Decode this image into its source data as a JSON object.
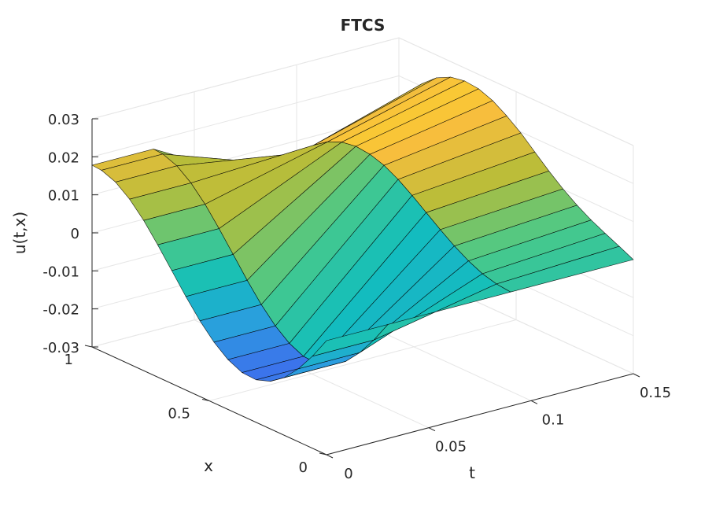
{
  "chart_data": {
    "type": "surface",
    "title": "FTCS",
    "xlabel": "t",
    "ylabel": "x",
    "zlabel": "u(t,x)",
    "t_ticks": [
      "0",
      "0.05",
      "0.1",
      "0.15"
    ],
    "x_ticks": [
      "0",
      "0.5",
      "1"
    ],
    "z_ticks": [
      "-0.03",
      "-0.02",
      "-0.01",
      "0",
      "0.01",
      "0.02",
      "0.03"
    ],
    "tlim": [
      0,
      0.15
    ],
    "xlim": [
      0,
      1
    ],
    "zlim": [
      -0.03,
      0.03
    ],
    "grid": true,
    "colormap": [
      "#3e26a8",
      "#4361f0",
      "#2b9ddf",
      "#12bebd",
      "#49c989",
      "#b8bd39",
      "#f9be3d",
      "#f9fb0e"
    ],
    "t": [
      0,
      0.03,
      0.09,
      0.15
    ],
    "x": [
      0,
      0.06,
      0.12,
      0.18,
      0.24,
      0.3,
      0.36,
      0.42,
      0.48,
      0.54,
      0.6,
      0.66,
      0.72,
      0.78,
      0.84,
      0.9,
      0.96,
      1
    ],
    "u": [
      [
        0,
        -0.0058,
        -0.0108,
        -0.0148,
        -0.0175,
        -0.0188,
        -0.0186,
        -0.0169,
        -0.014,
        -0.0101,
        -0.0054,
        -0.0003,
        0.0048,
        0.0095,
        0.0134,
        0.0162,
        0.0176,
        0.0178
      ],
      [
        0,
        -0.0058,
        -0.0108,
        -0.0148,
        -0.0175,
        -0.0188,
        -0.0186,
        -0.0169,
        -0.014,
        -0.0101,
        -0.0054,
        -0.0003,
        0.0048,
        0.0095,
        0.0134,
        0.0162,
        0.0176,
        0.0178
      ],
      [
        0,
        0.0004,
        0.0014,
        0.0031,
        0.0053,
        0.0079,
        0.0107,
        0.0135,
        0.016,
        0.018,
        0.0192,
        0.0196,
        0.019,
        0.0174,
        0.0148,
        0.011,
        0.0063,
        0
      ],
      [
        0,
        0.0018,
        0.0035,
        0.0053,
        0.0075,
        0.0101,
        0.0131,
        0.0164,
        0.0197,
        0.0225,
        0.0248,
        0.0262,
        0.0266,
        0.0259,
        0.024,
        0.0208,
        0.0163,
        0.0108
      ]
    ]
  }
}
